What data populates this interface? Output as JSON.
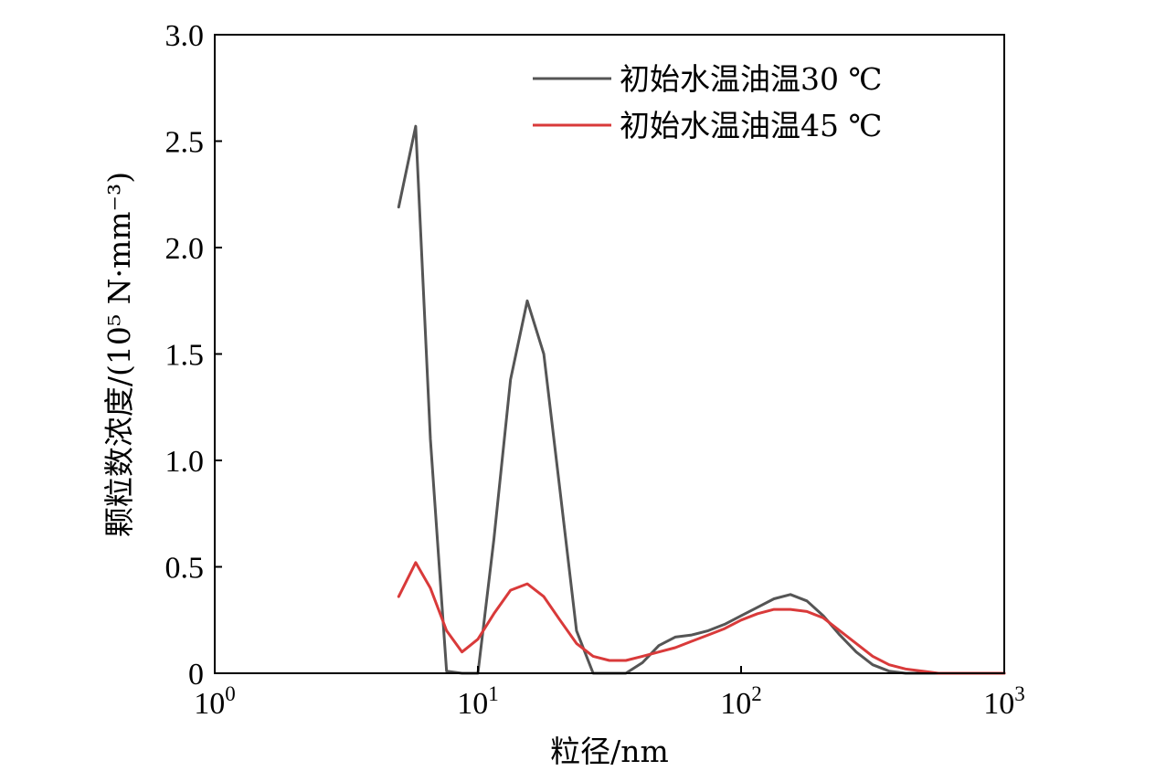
{
  "chart_data": {
    "type": "line",
    "x_scale": "log",
    "xlim": [
      1,
      1000
    ],
    "ylim": [
      0,
      3.0
    ],
    "xlabel": "粒径/nm",
    "ylabel": "颗粒数浓度/(10⁵ N·mm⁻³)",
    "x_ticks": [
      {
        "value": 1,
        "base": "10",
        "exp": "0"
      },
      {
        "value": 10,
        "base": "10",
        "exp": "1"
      },
      {
        "value": 100,
        "base": "10",
        "exp": "2"
      },
      {
        "value": 1000,
        "base": "10",
        "exp": "3"
      }
    ],
    "y_ticks": [
      {
        "value": 0,
        "label": "0"
      },
      {
        "value": 0.5,
        "label": "0.5"
      },
      {
        "value": 1.0,
        "label": "1.0"
      },
      {
        "value": 1.5,
        "label": "1.5"
      },
      {
        "value": 2.0,
        "label": "2.0"
      },
      {
        "value": 2.5,
        "label": "2.5"
      },
      {
        "value": 3.0,
        "label": "3.0"
      }
    ],
    "grid": false,
    "legend_position": "top-right",
    "series": [
      {
        "name": "初始水温油温30 ℃",
        "color": "#555555",
        "points": [
          [
            5.0,
            2.19
          ],
          [
            5.8,
            2.57
          ],
          [
            6.6,
            1.1
          ],
          [
            7.6,
            0.01
          ],
          [
            8.7,
            0.0
          ],
          [
            10.0,
            0.0
          ],
          [
            11.5,
            0.63
          ],
          [
            13.3,
            1.38
          ],
          [
            15.4,
            1.75
          ],
          [
            17.8,
            1.5
          ],
          [
            20.5,
            0.86
          ],
          [
            23.7,
            0.2
          ],
          [
            27.4,
            0.0
          ],
          [
            31.6,
            0.0
          ],
          [
            36.5,
            0.0
          ],
          [
            42.2,
            0.05
          ],
          [
            48.7,
            0.13
          ],
          [
            56.2,
            0.17
          ],
          [
            64.9,
            0.18
          ],
          [
            75.0,
            0.2
          ],
          [
            86.6,
            0.23
          ],
          [
            100,
            0.27
          ],
          [
            115.5,
            0.31
          ],
          [
            133.4,
            0.35
          ],
          [
            154.0,
            0.37
          ],
          [
            177.8,
            0.34
          ],
          [
            205.4,
            0.27
          ],
          [
            237.1,
            0.18
          ],
          [
            273.8,
            0.1
          ],
          [
            316.2,
            0.04
          ],
          [
            365.2,
            0.01
          ],
          [
            421.7,
            0.0
          ],
          [
            562.3,
            0.0
          ],
          [
            749.9,
            0.0
          ],
          [
            1000,
            0.0
          ]
        ]
      },
      {
        "name": "初始水温油温45 ℃",
        "color": "#d93a3a",
        "points": [
          [
            5.0,
            0.36
          ],
          [
            5.8,
            0.52
          ],
          [
            6.6,
            0.4
          ],
          [
            7.6,
            0.2
          ],
          [
            8.7,
            0.1
          ],
          [
            10.0,
            0.16
          ],
          [
            11.5,
            0.28
          ],
          [
            13.3,
            0.39
          ],
          [
            15.4,
            0.42
          ],
          [
            17.8,
            0.36
          ],
          [
            20.5,
            0.25
          ],
          [
            23.7,
            0.14
          ],
          [
            27.4,
            0.08
          ],
          [
            31.6,
            0.06
          ],
          [
            36.5,
            0.06
          ],
          [
            42.2,
            0.08
          ],
          [
            48.7,
            0.1
          ],
          [
            56.2,
            0.12
          ],
          [
            64.9,
            0.15
          ],
          [
            75.0,
            0.18
          ],
          [
            86.6,
            0.21
          ],
          [
            100,
            0.25
          ],
          [
            115.5,
            0.28
          ],
          [
            133.4,
            0.3
          ],
          [
            154.0,
            0.3
          ],
          [
            177.8,
            0.29
          ],
          [
            205.4,
            0.26
          ],
          [
            237.1,
            0.2
          ],
          [
            273.8,
            0.14
          ],
          [
            316.2,
            0.08
          ],
          [
            365.2,
            0.04
          ],
          [
            421.7,
            0.02
          ],
          [
            562.3,
            0.0
          ],
          [
            749.9,
            0.0
          ],
          [
            1000,
            0.0
          ]
        ]
      }
    ]
  }
}
